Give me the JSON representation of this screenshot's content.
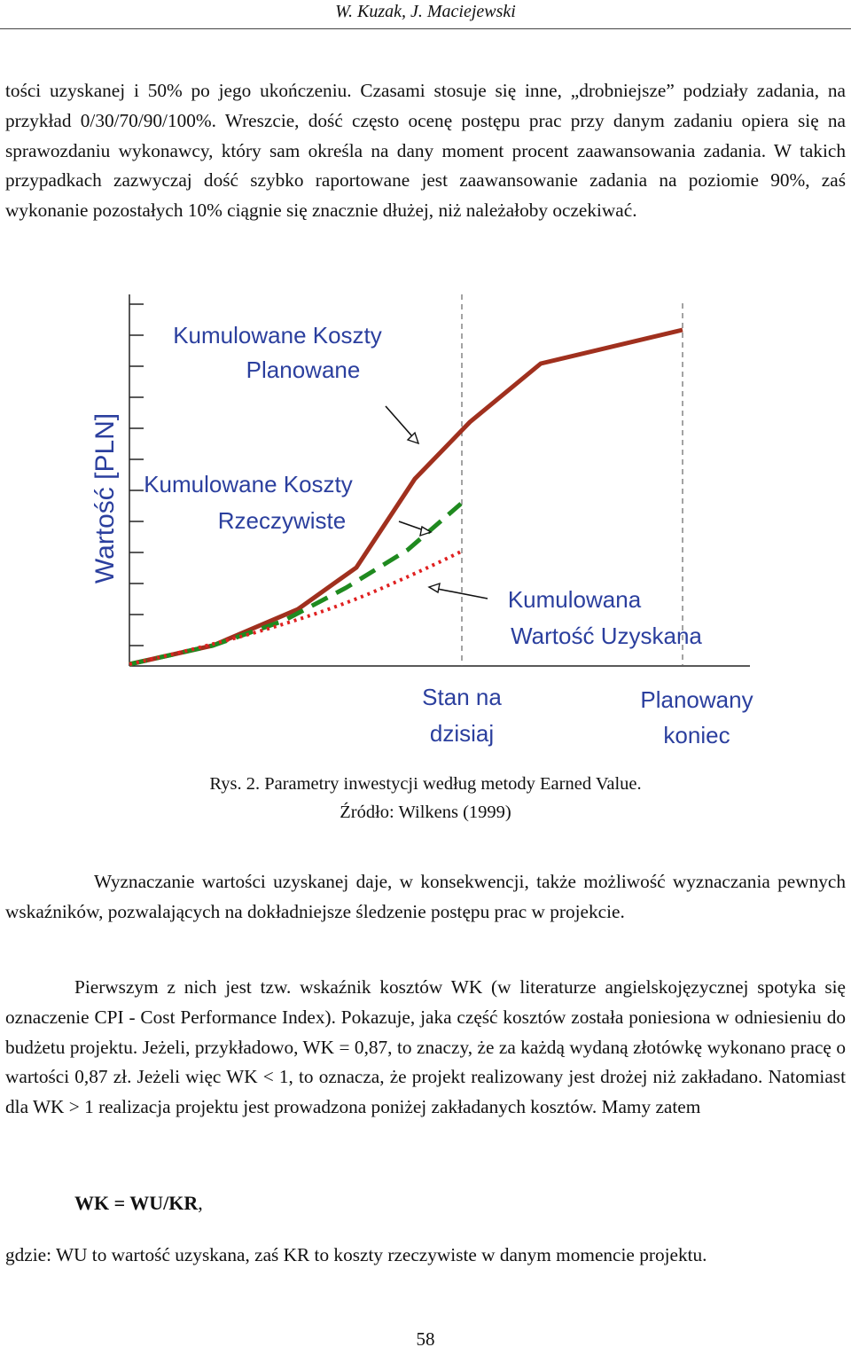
{
  "header": {
    "running_head": "W. Kuzak, J. Maciejewski"
  },
  "para1": "tości uzyskanej i 50% po jego ukończeniu. Czasami stosuje się inne, „drobniejsze” podziały zadania, na przykład 0/30/70/90/100%. Wreszcie, dość często ocenę postępu prac przy danym zadaniu opiera się na sprawozdaniu wykonawcy, który sam określa na dany moment procent zaawansowania zadania. W takich przypadkach zazwyczaj dość szybko raportowane jest zaawansowanie zadania na poziomie 90%, zaś wykonanie pozostałych 10% ciągnie się znacznie dłużej, niż należałoby oczekiwać.",
  "figure": {
    "ylabel": "Wartość [PLN]",
    "label_planned_1": "Kumulowane Koszty",
    "label_planned_2": "Planowane",
    "label_actual_1": "Kumulowane Koszty",
    "label_actual_2": "Rzeczywiste",
    "label_ev_1": "Kumulowana",
    "label_ev_2": "Wartość Uzyskana",
    "label_today_1": "Stan na",
    "label_today_2": "dzisiaj",
    "label_end_1": "Planowany",
    "label_end_2": "koniec",
    "colors": {
      "planned": "#a0301e",
      "actual": "#1f8a1f",
      "earned": "#e02020",
      "labels": "#2b3f9e"
    }
  },
  "caption": {
    "line1": "Rys. 2. Parametry inwestycji według metody Earned Value.",
    "line2": "Źródło: Wilkens (1999)"
  },
  "para2": "Wyznaczanie wartości uzyskanej daje, w konsekwencji, także możliwość wyznaczania pewnych wskaźników, pozwalających na dokładniejsze śledzenie postępu prac w projekcie.",
  "para3": "Pierwszym z nich jest tzw. wskaźnik kosztów WK (w literaturze angielskojęzycznej spotyka się oznaczenie CPI - Cost Performance Index). Pokazuje, jaka część kosztów została poniesiona w odniesieniu do budżetu projektu. Jeżeli, przykładowo, WK = 0,87, to znaczy, że za każdą wydaną złotówkę wykonano pracę o wartości 0,87 zł. Jeżeli więc WK < 1, to oznacza, że projekt realizowany jest drożej niż zakładano. Natomiast dla WK > 1 realizacja projektu jest prowadzona poniżej zakładanych kosztów. Mamy zatem",
  "formula": {
    "text": "WK = WU/KR",
    "punct": ","
  },
  "para4": "gdzie: WU to wartość uzyskana, zaś KR to koszty rzeczywiste w danym momencie projektu.",
  "page_number": "58"
}
